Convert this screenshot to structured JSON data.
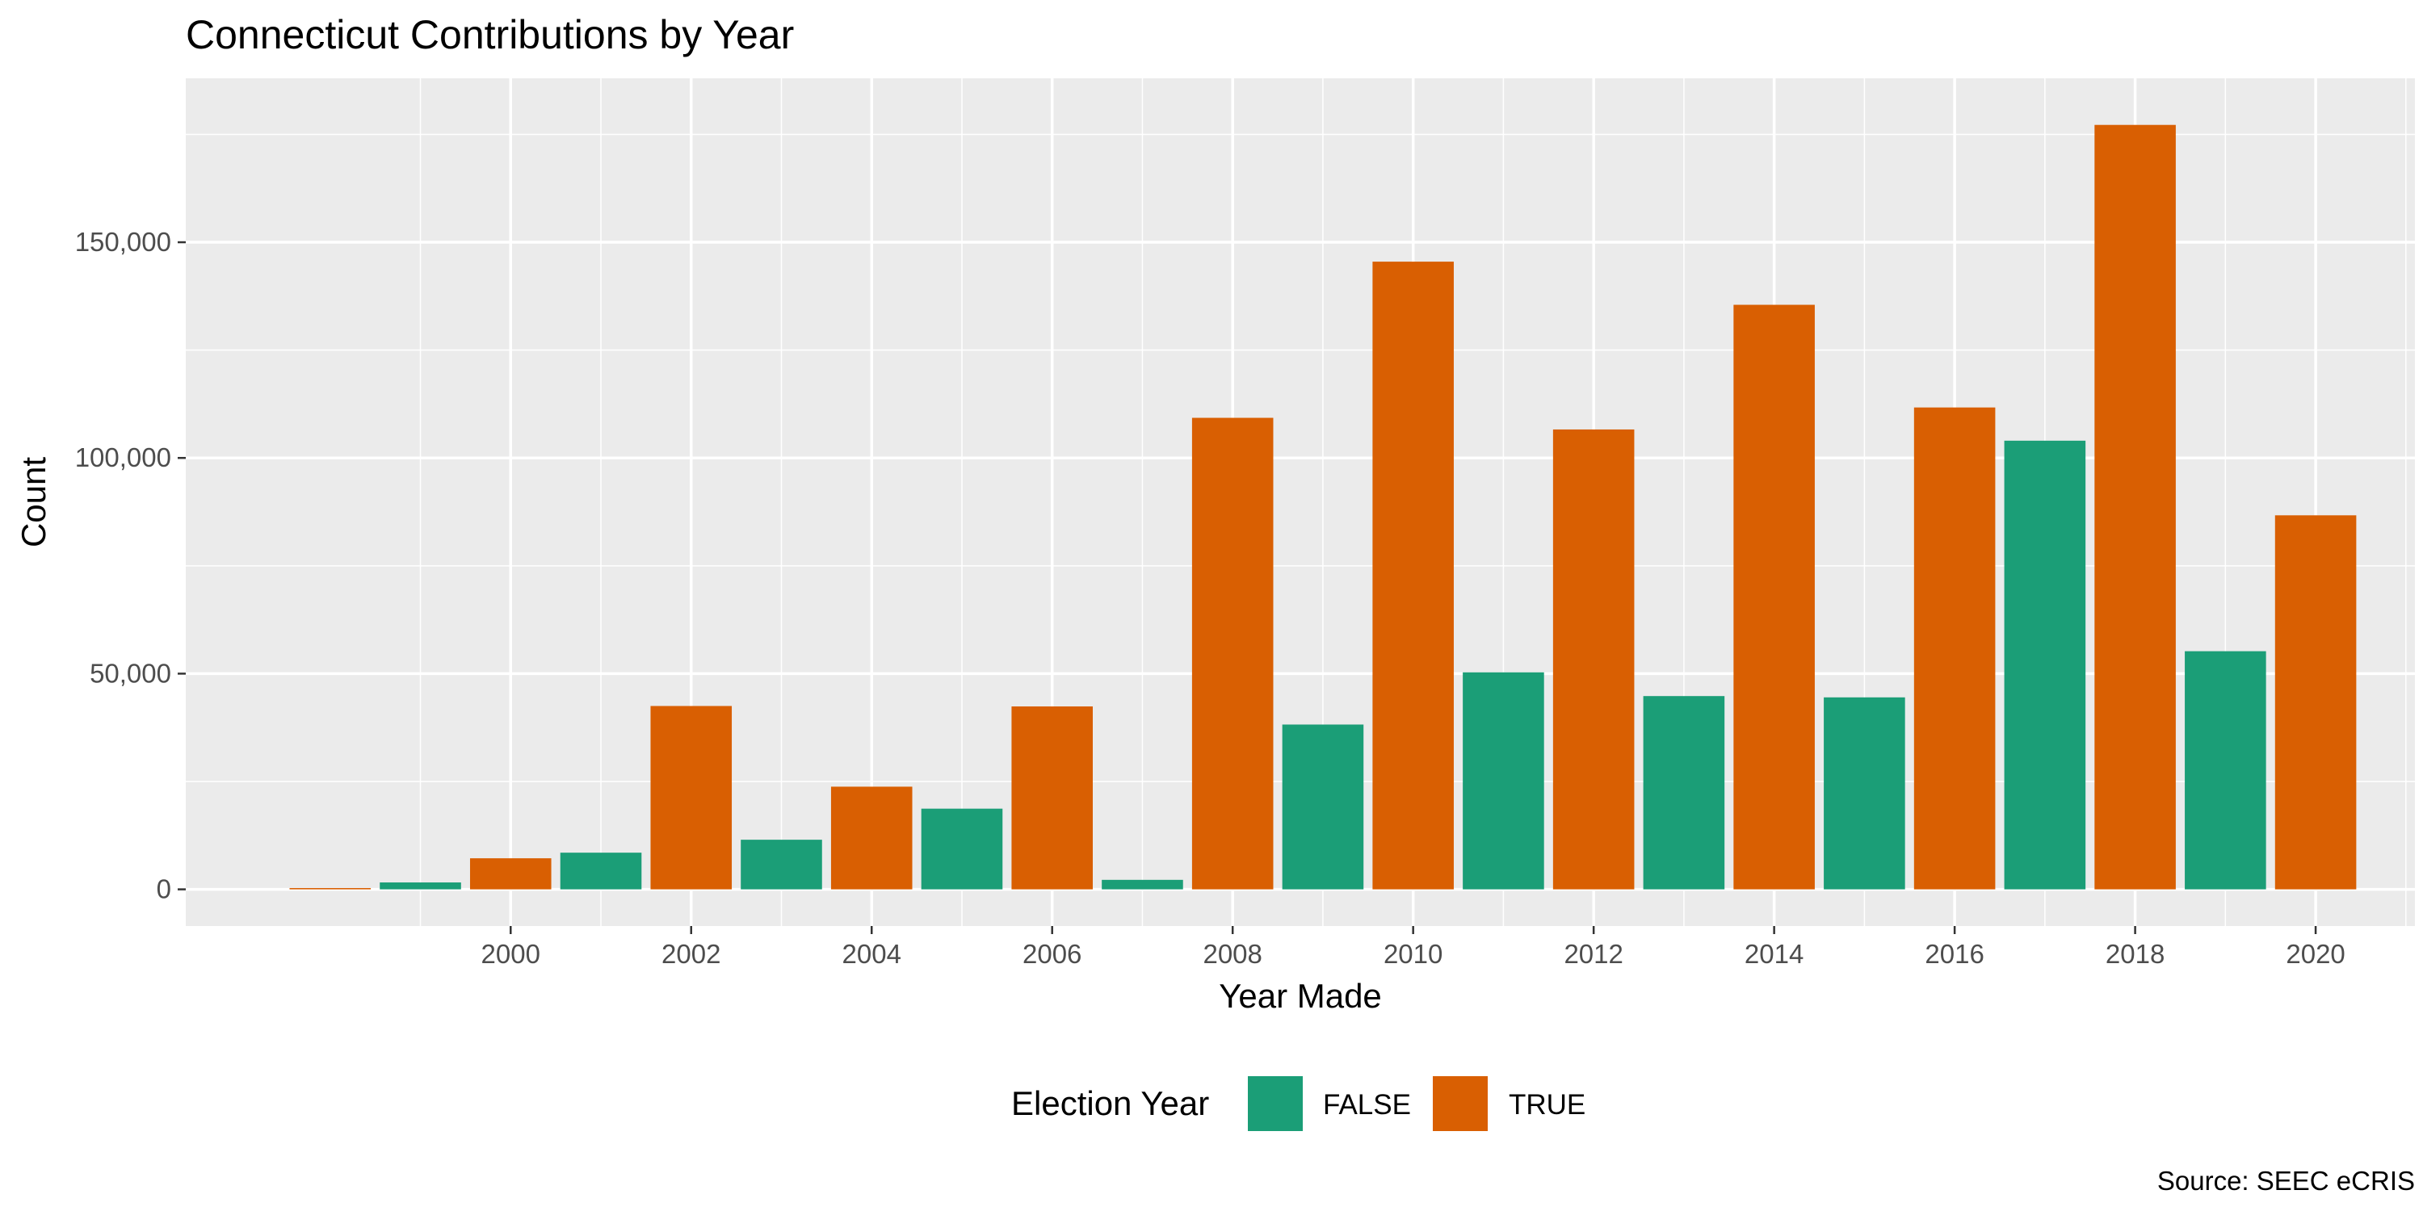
{
  "chart_data": {
    "type": "bar",
    "title": "Connecticut Contributions by Year",
    "xlabel": "Year Made",
    "ylabel": "Count",
    "caption": "Source: SEEC eCRIS",
    "legend": {
      "title": "Election Year",
      "placement": "bottom",
      "entries": [
        {
          "label": "FALSE",
          "color": "#1b9e77"
        },
        {
          "label": "TRUE",
          "color": "#d95f02"
        }
      ]
    },
    "xlim": [
      1996.4,
      2021.1
    ],
    "ylim": [
      -8500,
      188000
    ],
    "x_ticks": [
      2000,
      2002,
      2004,
      2006,
      2008,
      2010,
      2012,
      2014,
      2016,
      2018,
      2020
    ],
    "x_tick_labels": [
      "2000",
      "2002",
      "2004",
      "2006",
      "2008",
      "2010",
      "2012",
      "2014",
      "2016",
      "2018",
      "2020"
    ],
    "y_ticks": [
      0,
      50000,
      100000,
      150000
    ],
    "y_tick_labels": [
      "0",
      "50,000",
      "100,000",
      "150,000"
    ],
    "grid": true,
    "bars": [
      {
        "x": 1998,
        "value": 300,
        "election_year": "TRUE"
      },
      {
        "x": 1999,
        "value": 1600,
        "election_year": "FALSE"
      },
      {
        "x": 2000,
        "value": 7200,
        "election_year": "TRUE"
      },
      {
        "x": 2001,
        "value": 8500,
        "election_year": "FALSE"
      },
      {
        "x": 2002,
        "value": 42500,
        "election_year": "TRUE"
      },
      {
        "x": 2003,
        "value": 11500,
        "election_year": "FALSE"
      },
      {
        "x": 2004,
        "value": 23800,
        "election_year": "TRUE"
      },
      {
        "x": 2005,
        "value": 18700,
        "election_year": "FALSE"
      },
      {
        "x": 2006,
        "value": 42400,
        "election_year": "TRUE"
      },
      {
        "x": 2007,
        "value": 2200,
        "election_year": "FALSE"
      },
      {
        "x": 2008,
        "value": 109300,
        "election_year": "TRUE"
      },
      {
        "x": 2009,
        "value": 38200,
        "election_year": "FALSE"
      },
      {
        "x": 2010,
        "value": 145500,
        "election_year": "TRUE"
      },
      {
        "x": 2011,
        "value": 50300,
        "election_year": "FALSE"
      },
      {
        "x": 2012,
        "value": 106600,
        "election_year": "TRUE"
      },
      {
        "x": 2013,
        "value": 44800,
        "election_year": "FALSE"
      },
      {
        "x": 2014,
        "value": 135500,
        "election_year": "TRUE"
      },
      {
        "x": 2015,
        "value": 44500,
        "election_year": "FALSE"
      },
      {
        "x": 2016,
        "value": 111700,
        "election_year": "TRUE"
      },
      {
        "x": 2017,
        "value": 104000,
        "election_year": "FALSE"
      },
      {
        "x": 2018,
        "value": 177200,
        "election_year": "TRUE"
      },
      {
        "x": 2019,
        "value": 55200,
        "election_year": "FALSE"
      },
      {
        "x": 2020,
        "value": 86700,
        "election_year": "TRUE"
      }
    ]
  }
}
